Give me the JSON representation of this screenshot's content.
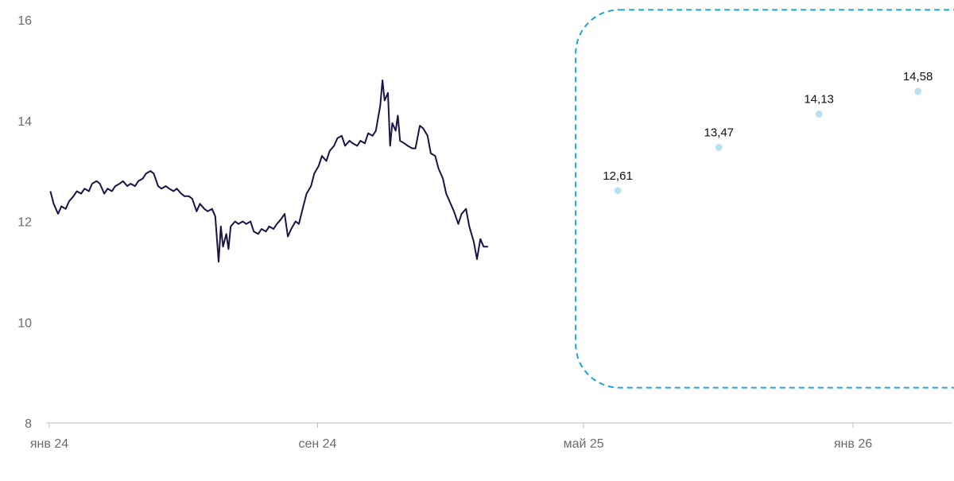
{
  "chart_data": {
    "type": "line",
    "x_axis": {
      "type": "date",
      "range": [
        "2024-01-01",
        "2026-04-01"
      ],
      "ticks": [
        {
          "date": "2024-01-01",
          "label": "янв 24"
        },
        {
          "date": "2024-09-01",
          "label": "сен 24"
        },
        {
          "date": "2025-05-01",
          "label": "май 25"
        },
        {
          "date": "2026-01-01",
          "label": "янв 26"
        }
      ]
    },
    "y_axis": {
      "range": [
        8,
        16
      ],
      "ticks": [
        8,
        10,
        12,
        14,
        16
      ]
    },
    "grid": false,
    "series": [
      {
        "kind": "line",
        "color": "#1a1446",
        "points": [
          [
            "2024-01-02",
            12.6
          ],
          [
            "2024-01-05",
            12.35
          ],
          [
            "2024-01-09",
            12.15
          ],
          [
            "2024-01-12",
            12.3
          ],
          [
            "2024-01-16",
            12.25
          ],
          [
            "2024-01-19",
            12.4
          ],
          [
            "2024-01-23",
            12.5
          ],
          [
            "2024-01-26",
            12.6
          ],
          [
            "2024-01-30",
            12.55
          ],
          [
            "2024-02-02",
            12.65
          ],
          [
            "2024-02-06",
            12.6
          ],
          [
            "2024-02-09",
            12.75
          ],
          [
            "2024-02-13",
            12.8
          ],
          [
            "2024-02-16",
            12.75
          ],
          [
            "2024-02-20",
            12.55
          ],
          [
            "2024-02-23",
            12.65
          ],
          [
            "2024-02-27",
            12.6
          ],
          [
            "2024-03-01",
            12.7
          ],
          [
            "2024-03-05",
            12.75
          ],
          [
            "2024-03-08",
            12.8
          ],
          [
            "2024-03-12",
            12.7
          ],
          [
            "2024-03-15",
            12.75
          ],
          [
            "2024-03-19",
            12.7
          ],
          [
            "2024-03-22",
            12.8
          ],
          [
            "2024-03-26",
            12.85
          ],
          [
            "2024-03-29",
            12.95
          ],
          [
            "2024-04-02",
            13.0
          ],
          [
            "2024-04-05",
            12.95
          ],
          [
            "2024-04-09",
            12.7
          ],
          [
            "2024-04-12",
            12.65
          ],
          [
            "2024-04-16",
            12.7
          ],
          [
            "2024-04-19",
            12.65
          ],
          [
            "2024-04-23",
            12.6
          ],
          [
            "2024-04-26",
            12.65
          ],
          [
            "2024-04-30",
            12.55
          ],
          [
            "2024-05-03",
            12.5
          ],
          [
            "2024-05-07",
            12.5
          ],
          [
            "2024-05-10",
            12.45
          ],
          [
            "2024-05-14",
            12.2
          ],
          [
            "2024-05-17",
            12.35
          ],
          [
            "2024-05-21",
            12.25
          ],
          [
            "2024-05-24",
            12.2
          ],
          [
            "2024-05-28",
            12.25
          ],
          [
            "2024-05-31",
            12.1
          ],
          [
            "2024-06-03",
            11.2
          ],
          [
            "2024-06-05",
            11.9
          ],
          [
            "2024-06-07",
            11.5
          ],
          [
            "2024-06-10",
            11.75
          ],
          [
            "2024-06-12",
            11.45
          ],
          [
            "2024-06-14",
            11.9
          ],
          [
            "2024-06-18",
            12.0
          ],
          [
            "2024-06-21",
            11.95
          ],
          [
            "2024-06-25",
            12.0
          ],
          [
            "2024-06-28",
            11.95
          ],
          [
            "2024-07-02",
            12.0
          ],
          [
            "2024-07-05",
            11.8
          ],
          [
            "2024-07-09",
            11.75
          ],
          [
            "2024-07-12",
            11.85
          ],
          [
            "2024-07-16",
            11.8
          ],
          [
            "2024-07-19",
            11.9
          ],
          [
            "2024-07-23",
            11.85
          ],
          [
            "2024-07-26",
            11.95
          ],
          [
            "2024-07-30",
            12.05
          ],
          [
            "2024-08-02",
            12.15
          ],
          [
            "2024-08-05",
            11.7
          ],
          [
            "2024-08-08",
            11.85
          ],
          [
            "2024-08-12",
            12.0
          ],
          [
            "2024-08-15",
            11.95
          ],
          [
            "2024-08-19",
            12.3
          ],
          [
            "2024-08-22",
            12.55
          ],
          [
            "2024-08-26",
            12.7
          ],
          [
            "2024-08-29",
            12.95
          ],
          [
            "2024-09-02",
            13.1
          ],
          [
            "2024-09-05",
            13.3
          ],
          [
            "2024-09-09",
            13.2
          ],
          [
            "2024-09-12",
            13.4
          ],
          [
            "2024-09-16",
            13.5
          ],
          [
            "2024-09-19",
            13.65
          ],
          [
            "2024-09-23",
            13.7
          ],
          [
            "2024-09-26",
            13.5
          ],
          [
            "2024-09-30",
            13.6
          ],
          [
            "2024-10-03",
            13.55
          ],
          [
            "2024-10-07",
            13.5
          ],
          [
            "2024-10-10",
            13.6
          ],
          [
            "2024-10-14",
            13.55
          ],
          [
            "2024-10-17",
            13.75
          ],
          [
            "2024-10-21",
            13.7
          ],
          [
            "2024-10-24",
            13.8
          ],
          [
            "2024-10-28",
            14.3
          ],
          [
            "2024-10-30",
            14.8
          ],
          [
            "2024-11-01",
            14.4
          ],
          [
            "2024-11-04",
            14.55
          ],
          [
            "2024-11-06",
            13.5
          ],
          [
            "2024-11-08",
            13.95
          ],
          [
            "2024-11-11",
            13.8
          ],
          [
            "2024-11-13",
            14.1
          ],
          [
            "2024-11-15",
            13.6
          ],
          [
            "2024-11-19",
            13.55
          ],
          [
            "2024-11-22",
            13.5
          ],
          [
            "2024-11-26",
            13.45
          ],
          [
            "2024-11-29",
            13.45
          ],
          [
            "2024-12-03",
            13.9
          ],
          [
            "2024-12-06",
            13.85
          ],
          [
            "2024-12-10",
            13.7
          ],
          [
            "2024-12-13",
            13.35
          ],
          [
            "2024-12-17",
            13.3
          ],
          [
            "2024-12-20",
            13.05
          ],
          [
            "2024-12-24",
            12.85
          ],
          [
            "2024-12-27",
            12.55
          ],
          [
            "2025-01-03",
            12.2
          ],
          [
            "2025-01-07",
            11.95
          ],
          [
            "2025-01-10",
            12.15
          ],
          [
            "2025-01-14",
            12.25
          ],
          [
            "2025-01-17",
            11.9
          ],
          [
            "2025-01-21",
            11.6
          ],
          [
            "2025-01-24",
            11.25
          ],
          [
            "2025-01-27",
            11.65
          ],
          [
            "2025-01-30",
            11.5
          ],
          [
            "2025-02-03",
            11.5
          ]
        ]
      },
      {
        "kind": "points",
        "color": "#b9e2ef",
        "points": [
          {
            "x": "2025-06-01",
            "y": 12.61,
            "label": "12,61"
          },
          {
            "x": "2025-09-01",
            "y": 13.47,
            "label": "13,47"
          },
          {
            "x": "2025-12-01",
            "y": 14.13,
            "label": "14,13"
          },
          {
            "x": "2026-03-01",
            "y": 14.58,
            "label": "14,58"
          }
        ]
      }
    ],
    "highlight_box": {
      "start": "2025-05-01",
      "end": "2026-04-01",
      "y_range": [
        8.7,
        16.2
      ],
      "style": "dashed",
      "color": "#1ea5d8"
    }
  }
}
